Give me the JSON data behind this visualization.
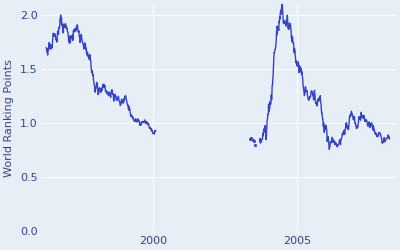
{
  "ylabel": "World Ranking Points",
  "background_color": "#e8eef5",
  "plot_background_color": "#e8eef5",
  "line_color": "#3344cc",
  "line_width": 1.0,
  "ylim": [
    0,
    2.1
  ],
  "yticks": [
    0,
    0.5,
    1.0,
    1.5,
    2.0
  ],
  "ylabel_color": "#33448a",
  "tick_color": "#33448a",
  "grid_color": "#ffffff",
  "figsize": [
    4.0,
    2.5
  ],
  "dpi": 100,
  "ylabel_fontsize": 8,
  "tick_fontsize": 8
}
